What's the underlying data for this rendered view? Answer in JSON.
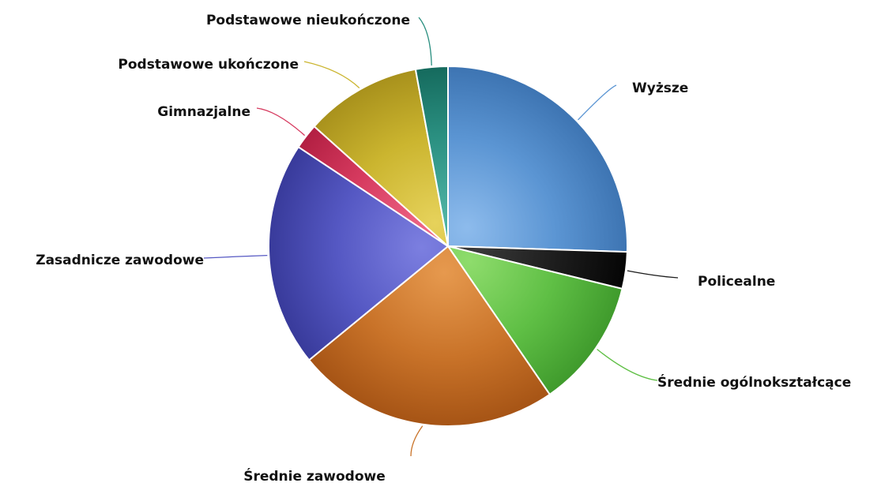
{
  "chart_data": {
    "type": "pie",
    "title": "",
    "start_angle_deg": 0,
    "direction": "clockwise",
    "slices": [
      {
        "label": "Wyższe",
        "value": 25.5,
        "color": "#5b95d3",
        "color_light": "#8dbbec",
        "color_dark": "#3d74b2"
      },
      {
        "label": "Policealne",
        "value": 3.3,
        "color": "#1c1c1c",
        "color_light": "#3a3a3a",
        "color_dark": "#050505"
      },
      {
        "label": "Średnie ogólnokształcące",
        "value": 11.6,
        "color": "#5fbf45",
        "color_light": "#8edc6c",
        "color_dark": "#3f9a2c"
      },
      {
        "label": "Średnie zawodowe",
        "value": 23.7,
        "color": "#c97329",
        "color_light": "#e6994e",
        "color_dark": "#a65415"
      },
      {
        "label": "Zasadnicze zawodowe",
        "value": 20.2,
        "color": "#5558c3",
        "color_light": "#7c7fe0",
        "color_dark": "#383a9a"
      },
      {
        "label": "Gimnazjalne",
        "value": 2.3,
        "color": "#d63a5f",
        "color_light": "#ee6686",
        "color_dark": "#b21f42"
      },
      {
        "label": "Podstawowe ukończone",
        "value": 10.5,
        "color": "#cbb52f",
        "color_light": "#e6d25b",
        "color_dark": "#a8911c"
      },
      {
        "label": "Podstawowe nieukończone",
        "value": 2.9,
        "color": "#2a8f80",
        "color_light": "#4fb3a4",
        "color_dark": "#156a5d"
      }
    ]
  }
}
